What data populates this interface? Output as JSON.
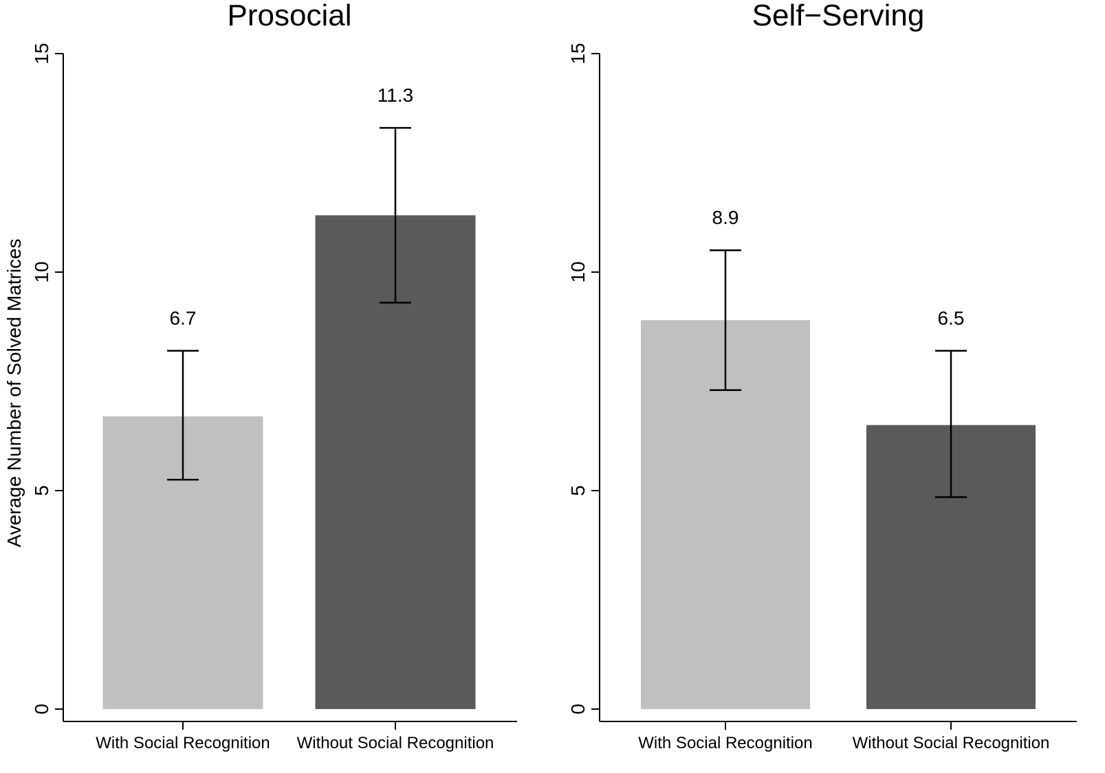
{
  "chart_data": {
    "type": "bar",
    "ylabel": "Average Number of Solved Matrices",
    "ylim": [
      0,
      15
    ],
    "yticks": [
      0,
      5,
      10,
      15
    ],
    "categories": [
      "With Social Recognition",
      "Without Social Recognition"
    ],
    "colors": [
      "#c0c0c0",
      "#5a5a5a"
    ],
    "panels": [
      {
        "title": "Prosocial",
        "values": [
          6.7,
          11.3
        ],
        "value_labels": [
          "6.7",
          "11.3"
        ],
        "error_low": [
          5.25,
          9.3
        ],
        "error_high": [
          8.2,
          13.3
        ]
      },
      {
        "title": "Self−Serving",
        "values": [
          8.9,
          6.5
        ],
        "value_labels": [
          "8.9",
          "6.5"
        ],
        "error_low": [
          7.3,
          4.85
        ],
        "error_high": [
          10.5,
          8.2
        ]
      }
    ]
  }
}
